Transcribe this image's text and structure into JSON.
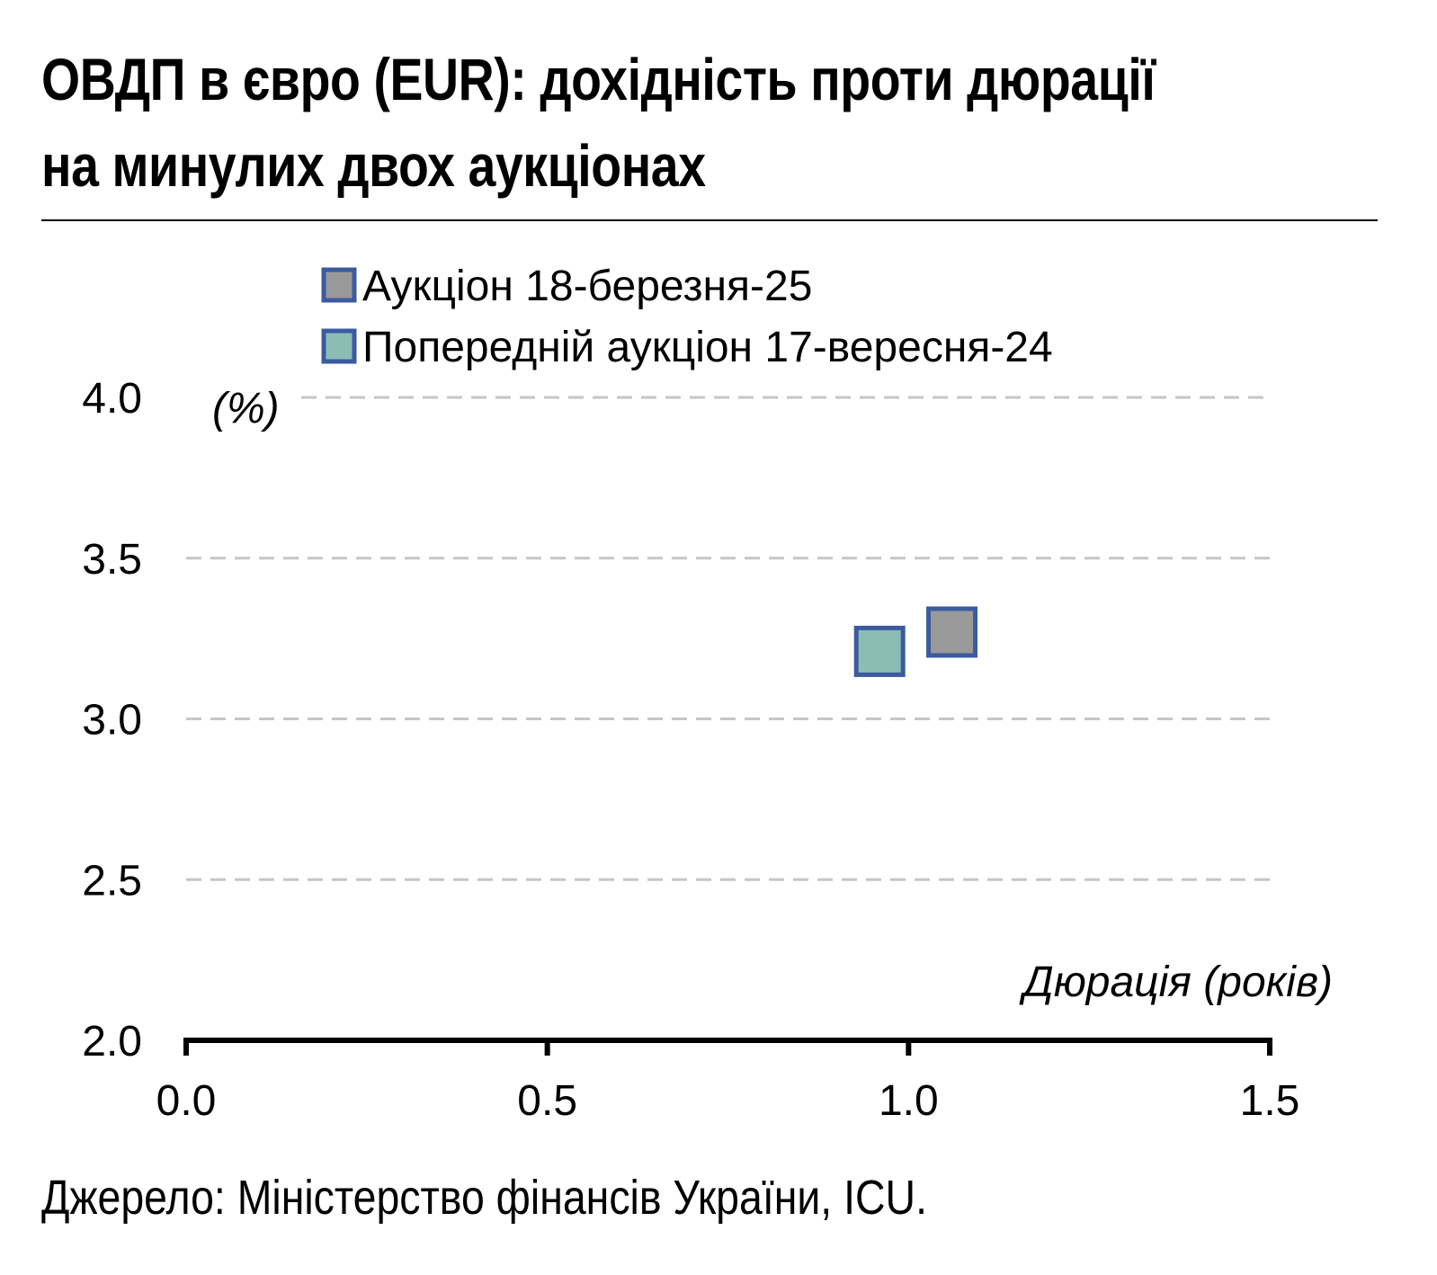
{
  "chart_data": {
    "type": "scatter",
    "title": "ОВДП в євро (EUR): дохідність проти дюрації на минулих двох аукціонах",
    "xlabel": "Дюрація (років)",
    "ylabel": "(%)",
    "xlim": [
      0.0,
      1.5
    ],
    "ylim": [
      2.0,
      4.0
    ],
    "x_ticks": [
      "0.0",
      "0.5",
      "1.0",
      "1.5"
    ],
    "y_ticks": [
      "2.0",
      "2.5",
      "3.0",
      "3.5",
      "4.0"
    ],
    "grid": "horizontal dashed",
    "legend_position": "top",
    "series": [
      {
        "name": "Аукціон 18-березня-25",
        "color": "#999999",
        "edge_color": "#3c5aa0",
        "points": [
          {
            "x": 1.06,
            "y": 3.27
          }
        ]
      },
      {
        "name": "Попередній аукціон 17-вересня-24",
        "color": "#8cbdb5",
        "edge_color": "#3c5aa0",
        "points": [
          {
            "x": 0.96,
            "y": 3.21
          }
        ]
      }
    ]
  },
  "footer": {
    "source": "Джерело: Міністерство фінансів України, ICU."
  }
}
